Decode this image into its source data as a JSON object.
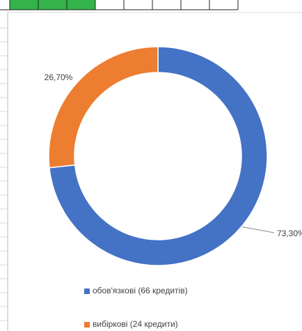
{
  "chart_data": {
    "type": "doughnut",
    "categories": [
      "обов'язкові (66 кредитів)",
      "вибіркові (24 кредити)"
    ],
    "values": [
      73.3,
      26.7
    ],
    "value_labels": [
      "73,30%",
      "26,70%"
    ],
    "colors": [
      "#4472c4",
      "#ed7d31"
    ],
    "legend": "bottom"
  }
}
